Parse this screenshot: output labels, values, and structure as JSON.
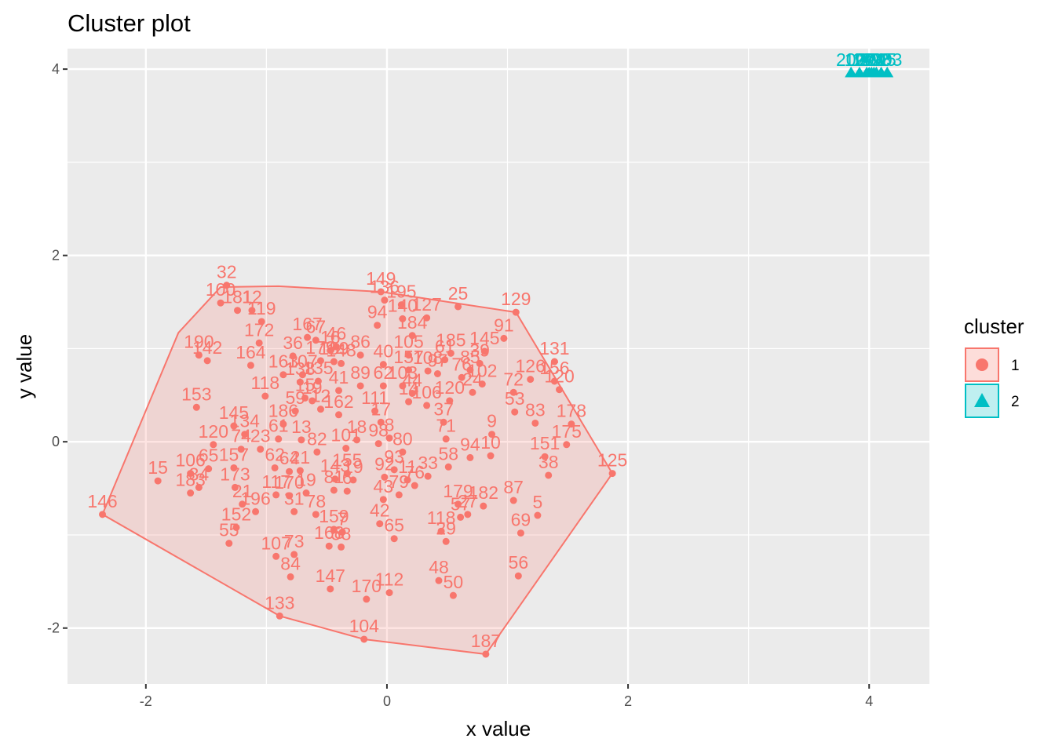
{
  "chart_data": {
    "type": "scatter",
    "title": "Cluster plot",
    "xlabel": "x value",
    "ylabel": "y value",
    "xlim": [
      -2.65,
      4.5
    ],
    "ylim": [
      -2.6,
      4.22
    ],
    "x_ticks": [
      -2,
      0,
      2,
      4
    ],
    "y_ticks": [
      -2,
      0,
      2,
      4
    ],
    "x_tick_labels": [
      "-2",
      "0",
      "2",
      "4"
    ],
    "y_tick_labels": [
      "-2",
      "0",
      "2",
      "4"
    ],
    "grid": true,
    "legend": {
      "title": "cluster",
      "position": "right"
    },
    "hull_color": "#F8766D",
    "hull_fill": "#F8766D",
    "series": [
      {
        "name": "1",
        "color": "#F8766D",
        "marker": "circle",
        "hull": [
          [
            -2.36,
            -0.78
          ],
          [
            -1.73,
            1.17
          ],
          [
            -1.38,
            1.66
          ],
          [
            -0.9,
            1.67
          ],
          [
            -0.05,
            1.61
          ],
          [
            1.07,
            1.39
          ],
          [
            1.87,
            -0.34
          ],
          [
            0.82,
            -2.28
          ],
          [
            -0.19,
            -2.12
          ],
          [
            -0.89,
            -1.87
          ]
        ],
        "points": [
          {
            "label": "149",
            "x": -0.05,
            "y": 1.61
          },
          {
            "label": "136",
            "x": -0.02,
            "y": 1.52
          },
          {
            "label": "195",
            "x": 0.12,
            "y": 1.47
          },
          {
            "label": "25",
            "x": 0.59,
            "y": 1.45
          },
          {
            "label": "129",
            "x": 1.07,
            "y": 1.39
          },
          {
            "label": "91",
            "x": 0.97,
            "y": 1.11
          },
          {
            "label": "94",
            "x": -0.08,
            "y": 1.25
          },
          {
            "label": "140",
            "x": 0.13,
            "y": 1.32
          },
          {
            "label": "127",
            "x": 0.33,
            "y": 1.33
          },
          {
            "label": "32",
            "x": -1.33,
            "y": 1.68
          },
          {
            "label": "100",
            "x": -1.38,
            "y": 1.49
          },
          {
            "label": "181",
            "x": -1.24,
            "y": 1.41
          },
          {
            "label": "12",
            "x": -1.12,
            "y": 1.41
          },
          {
            "label": "119",
            "x": -1.04,
            "y": 1.29
          },
          {
            "label": "172",
            "x": -1.06,
            "y": 1.06
          },
          {
            "label": "167",
            "x": -0.66,
            "y": 1.12
          },
          {
            "label": "67",
            "x": -0.59,
            "y": 1.09
          },
          {
            "label": "46",
            "x": -0.42,
            "y": 1.02
          },
          {
            "label": "16",
            "x": -0.47,
            "y": 0.98
          },
          {
            "label": "36",
            "x": -0.78,
            "y": 0.92
          },
          {
            "label": "179",
            "x": -0.55,
            "y": 0.87
          },
          {
            "label": "189",
            "x": -0.44,
            "y": 0.86
          },
          {
            "label": "148",
            "x": -0.38,
            "y": 0.84
          },
          {
            "label": "86",
            "x": -0.22,
            "y": 0.93
          },
          {
            "label": "105",
            "x": 0.18,
            "y": 0.93
          },
          {
            "label": "184",
            "x": 0.21,
            "y": 1.14
          },
          {
            "label": "185",
            "x": 0.53,
            "y": 0.95
          },
          {
            "label": "145",
            "x": 0.81,
            "y": 0.97
          },
          {
            "label": "61",
            "x": 0.48,
            "y": 0.88
          },
          {
            "label": "190",
            "x": -1.56,
            "y": 0.93
          },
          {
            "label": "142",
            "x": -1.49,
            "y": 0.87
          },
          {
            "label": "164",
            "x": -1.13,
            "y": 0.82
          },
          {
            "label": "131",
            "x": 1.39,
            "y": 0.86
          },
          {
            "label": "126",
            "x": 1.19,
            "y": 0.67
          },
          {
            "label": "156",
            "x": 1.39,
            "y": 0.65
          },
          {
            "label": "120",
            "x": 1.43,
            "y": 0.56
          },
          {
            "label": "39",
            "x": 0.77,
            "y": 0.84
          },
          {
            "label": "85",
            "x": 0.69,
            "y": 0.77
          },
          {
            "label": "40",
            "x": -0.03,
            "y": 0.83
          },
          {
            "label": "157",
            "x": 0.18,
            "y": 0.77
          },
          {
            "label": "108",
            "x": 0.34,
            "y": 0.76
          },
          {
            "label": "97",
            "x": 0.42,
            "y": 0.73
          },
          {
            "label": "76",
            "x": 0.62,
            "y": 0.69
          },
          {
            "label": "102",
            "x": 0.79,
            "y": 0.62
          },
          {
            "label": "72",
            "x": 1.05,
            "y": 0.53
          },
          {
            "label": "153",
            "x": -1.58,
            "y": 0.37
          },
          {
            "label": "118",
            "x": -1.01,
            "y": 0.49
          },
          {
            "label": "163",
            "x": -0.86,
            "y": 0.72
          },
          {
            "label": "107",
            "x": -0.7,
            "y": 0.72
          },
          {
            "label": "138",
            "x": -0.72,
            "y": 0.64
          },
          {
            "label": "135",
            "x": -0.57,
            "y": 0.65
          },
          {
            "label": "15",
            "x": -0.68,
            "y": 0.47
          },
          {
            "label": "19",
            "x": -0.62,
            "y": 0.44
          },
          {
            "label": "41",
            "x": -0.4,
            "y": 0.55
          },
          {
            "label": "89",
            "x": -0.22,
            "y": 0.6
          },
          {
            "label": "62",
            "x": -0.03,
            "y": 0.6
          },
          {
            "label": "103",
            "x": 0.13,
            "y": 0.6
          },
          {
            "label": "44",
            "x": 0.21,
            "y": 0.52
          },
          {
            "label": "14",
            "x": 0.18,
            "y": 0.43
          },
          {
            "label": "106",
            "x": 0.33,
            "y": 0.39
          },
          {
            "label": "120b",
            "x": 0.52,
            "y": 0.44
          },
          {
            "label": "24",
            "x": 0.71,
            "y": 0.53
          },
          {
            "label": "53",
            "x": 1.06,
            "y": 0.32
          },
          {
            "label": "83",
            "x": 1.23,
            "y": 0.2
          },
          {
            "label": "178",
            "x": 1.53,
            "y": 0.19
          },
          {
            "label": "175",
            "x": 1.49,
            "y": -0.03
          },
          {
            "label": "151",
            "x": 1.31,
            "y": -0.16
          },
          {
            "label": "38",
            "x": 1.34,
            "y": -0.36
          },
          {
            "label": "125",
            "x": 1.87,
            "y": -0.34
          },
          {
            "label": "59",
            "x": -0.76,
            "y": 0.33
          },
          {
            "label": "12b",
            "x": -0.55,
            "y": 0.35
          },
          {
            "label": "162",
            "x": -0.4,
            "y": 0.29
          },
          {
            "label": "111",
            "x": -0.1,
            "y": 0.33
          },
          {
            "label": "17",
            "x": -0.05,
            "y": 0.21
          },
          {
            "label": "37",
            "x": 0.47,
            "y": 0.21
          },
          {
            "label": "9",
            "x": 0.87,
            "y": 0.08
          },
          {
            "label": "145b",
            "x": -1.27,
            "y": 0.17
          },
          {
            "label": "186",
            "x": -0.86,
            "y": 0.19
          },
          {
            "label": "61b",
            "x": -0.9,
            "y": 0.03
          },
          {
            "label": "134",
            "x": -1.18,
            "y": 0.08
          },
          {
            "label": "13",
            "x": -0.71,
            "y": 0.02
          },
          {
            "label": "82",
            "x": -0.58,
            "y": -0.11
          },
          {
            "label": "18",
            "x": -0.25,
            "y": 0.02
          },
          {
            "label": "8",
            "x": 0.02,
            "y": 0.04
          },
          {
            "label": "98",
            "x": -0.07,
            "y": -0.02
          },
          {
            "label": "71",
            "x": 0.49,
            "y": 0.03
          },
          {
            "label": "10",
            "x": 0.86,
            "y": -0.15
          },
          {
            "label": "120c",
            "x": -1.44,
            "y": -0.03
          },
          {
            "label": "74",
            "x": -1.21,
            "y": -0.08
          },
          {
            "label": "23",
            "x": -1.05,
            "y": -0.08
          },
          {
            "label": "101",
            "x": -0.34,
            "y": -0.07
          },
          {
            "label": "80",
            "x": 0.13,
            "y": -0.11
          },
          {
            "label": "94b",
            "x": 0.69,
            "y": -0.17
          },
          {
            "label": "106b",
            "x": -1.63,
            "y": -0.34
          },
          {
            "label": "65",
            "x": -1.48,
            "y": -0.29
          },
          {
            "label": "157b",
            "x": -1.27,
            "y": -0.28
          },
          {
            "label": "15b",
            "x": -1.9,
            "y": -0.42
          },
          {
            "label": "183",
            "x": -1.63,
            "y": -0.55
          },
          {
            "label": "34",
            "x": -1.56,
            "y": -0.49
          },
          {
            "label": "173",
            "x": -1.26,
            "y": -0.49
          },
          {
            "label": "62b",
            "x": -0.93,
            "y": -0.28
          },
          {
            "label": "64",
            "x": -0.81,
            "y": -0.32
          },
          {
            "label": "21",
            "x": -0.72,
            "y": -0.31
          },
          {
            "label": "143",
            "x": -0.43,
            "y": -0.4
          },
          {
            "label": "155",
            "x": -0.33,
            "y": -0.34
          },
          {
            "label": "19b",
            "x": -0.28,
            "y": -0.41
          },
          {
            "label": "92",
            "x": -0.02,
            "y": -0.38
          },
          {
            "label": "93",
            "x": 0.06,
            "y": -0.3
          },
          {
            "label": "11",
            "x": 0.17,
            "y": -0.41
          },
          {
            "label": "33",
            "x": 0.34,
            "y": -0.37
          },
          {
            "label": "58",
            "x": 0.51,
            "y": -0.27
          },
          {
            "label": "81",
            "x": -0.44,
            "y": -0.52
          },
          {
            "label": "6",
            "x": -0.33,
            "y": -0.53
          },
          {
            "label": "79",
            "x": 0.1,
            "y": -0.57
          },
          {
            "label": "76b",
            "x": 0.23,
            "y": -0.47
          },
          {
            "label": "21b",
            "x": -1.2,
            "y": -0.67
          },
          {
            "label": "117",
            "x": -0.92,
            "y": -0.57
          },
          {
            "label": "170",
            "x": -0.81,
            "y": -0.58
          },
          {
            "label": "19c",
            "x": -0.67,
            "y": -0.55
          },
          {
            "label": "196",
            "x": -1.09,
            "y": -0.75
          },
          {
            "label": "31",
            "x": -0.77,
            "y": -0.75
          },
          {
            "label": "78",
            "x": -0.59,
            "y": -0.78
          },
          {
            "label": "43",
            "x": -0.03,
            "y": -0.62
          },
          {
            "label": "179b",
            "x": 0.59,
            "y": -0.67
          },
          {
            "label": "182",
            "x": 0.8,
            "y": -0.69
          },
          {
            "label": "87",
            "x": 1.05,
            "y": -0.63
          },
          {
            "label": "57",
            "x": 0.61,
            "y": -0.81
          },
          {
            "label": "27",
            "x": 0.67,
            "y": -0.78
          },
          {
            "label": "5",
            "x": 1.25,
            "y": -0.79
          },
          {
            "label": "152",
            "x": -1.25,
            "y": -0.92
          },
          {
            "label": "159",
            "x": -0.44,
            "y": -0.94
          },
          {
            "label": "7",
            "x": -0.37,
            "y": -0.97
          },
          {
            "label": "42",
            "x": -0.06,
            "y": -0.88
          },
          {
            "label": "118b",
            "x": 0.45,
            "y": -0.96
          },
          {
            "label": "69",
            "x": 1.11,
            "y": -0.98
          },
          {
            "label": "55",
            "x": -1.31,
            "y": -1.09
          },
          {
            "label": "29",
            "x": 0.49,
            "y": -1.07
          },
          {
            "label": "65b",
            "x": 0.06,
            "y": -1.04
          },
          {
            "label": "168",
            "x": -0.48,
            "y": -1.12
          },
          {
            "label": "58b",
            "x": -0.38,
            "y": -1.13
          },
          {
            "label": "107b",
            "x": -0.92,
            "y": -1.23
          },
          {
            "label": "73",
            "x": -0.77,
            "y": -1.21
          },
          {
            "label": "84",
            "x": -0.8,
            "y": -1.45
          },
          {
            "label": "147",
            "x": -0.47,
            "y": -1.58
          },
          {
            "label": "48",
            "x": 0.43,
            "y": -1.49
          },
          {
            "label": "56",
            "x": 1.09,
            "y": -1.44
          },
          {
            "label": "50",
            "x": 0.55,
            "y": -1.65
          },
          {
            "label": "112",
            "x": 0.02,
            "y": -1.62
          },
          {
            "label": "170b",
            "x": -0.17,
            "y": -1.69
          },
          {
            "label": "133",
            "x": -0.89,
            "y": -1.87
          },
          {
            "label": "104",
            "x": -0.19,
            "y": -2.12
          },
          {
            "label": "187",
            "x": 0.82,
            "y": -2.28
          },
          {
            "label": "146",
            "x": -2.36,
            "y": -0.78
          }
        ]
      },
      {
        "name": "2",
        "color": "#00BFC4",
        "marker": "triangle",
        "points": [
          {
            "label": "200",
            "x": 3.85,
            "y": 3.96
          },
          {
            "label": "197",
            "x": 3.92,
            "y": 3.96
          },
          {
            "label": "199",
            "x": 3.98,
            "y": 3.96
          },
          {
            "label": "201",
            "x": 4.02,
            "y": 3.96
          },
          {
            "label": "198",
            "x": 4.06,
            "y": 3.96
          },
          {
            "label": "205",
            "x": 4.1,
            "y": 3.96
          },
          {
            "label": "203",
            "x": 4.15,
            "y": 3.96
          },
          {
            "label": "204",
            "x": 4.0,
            "y": 3.96
          },
          {
            "label": "202",
            "x": 4.04,
            "y": 3.96
          }
        ]
      }
    ]
  }
}
